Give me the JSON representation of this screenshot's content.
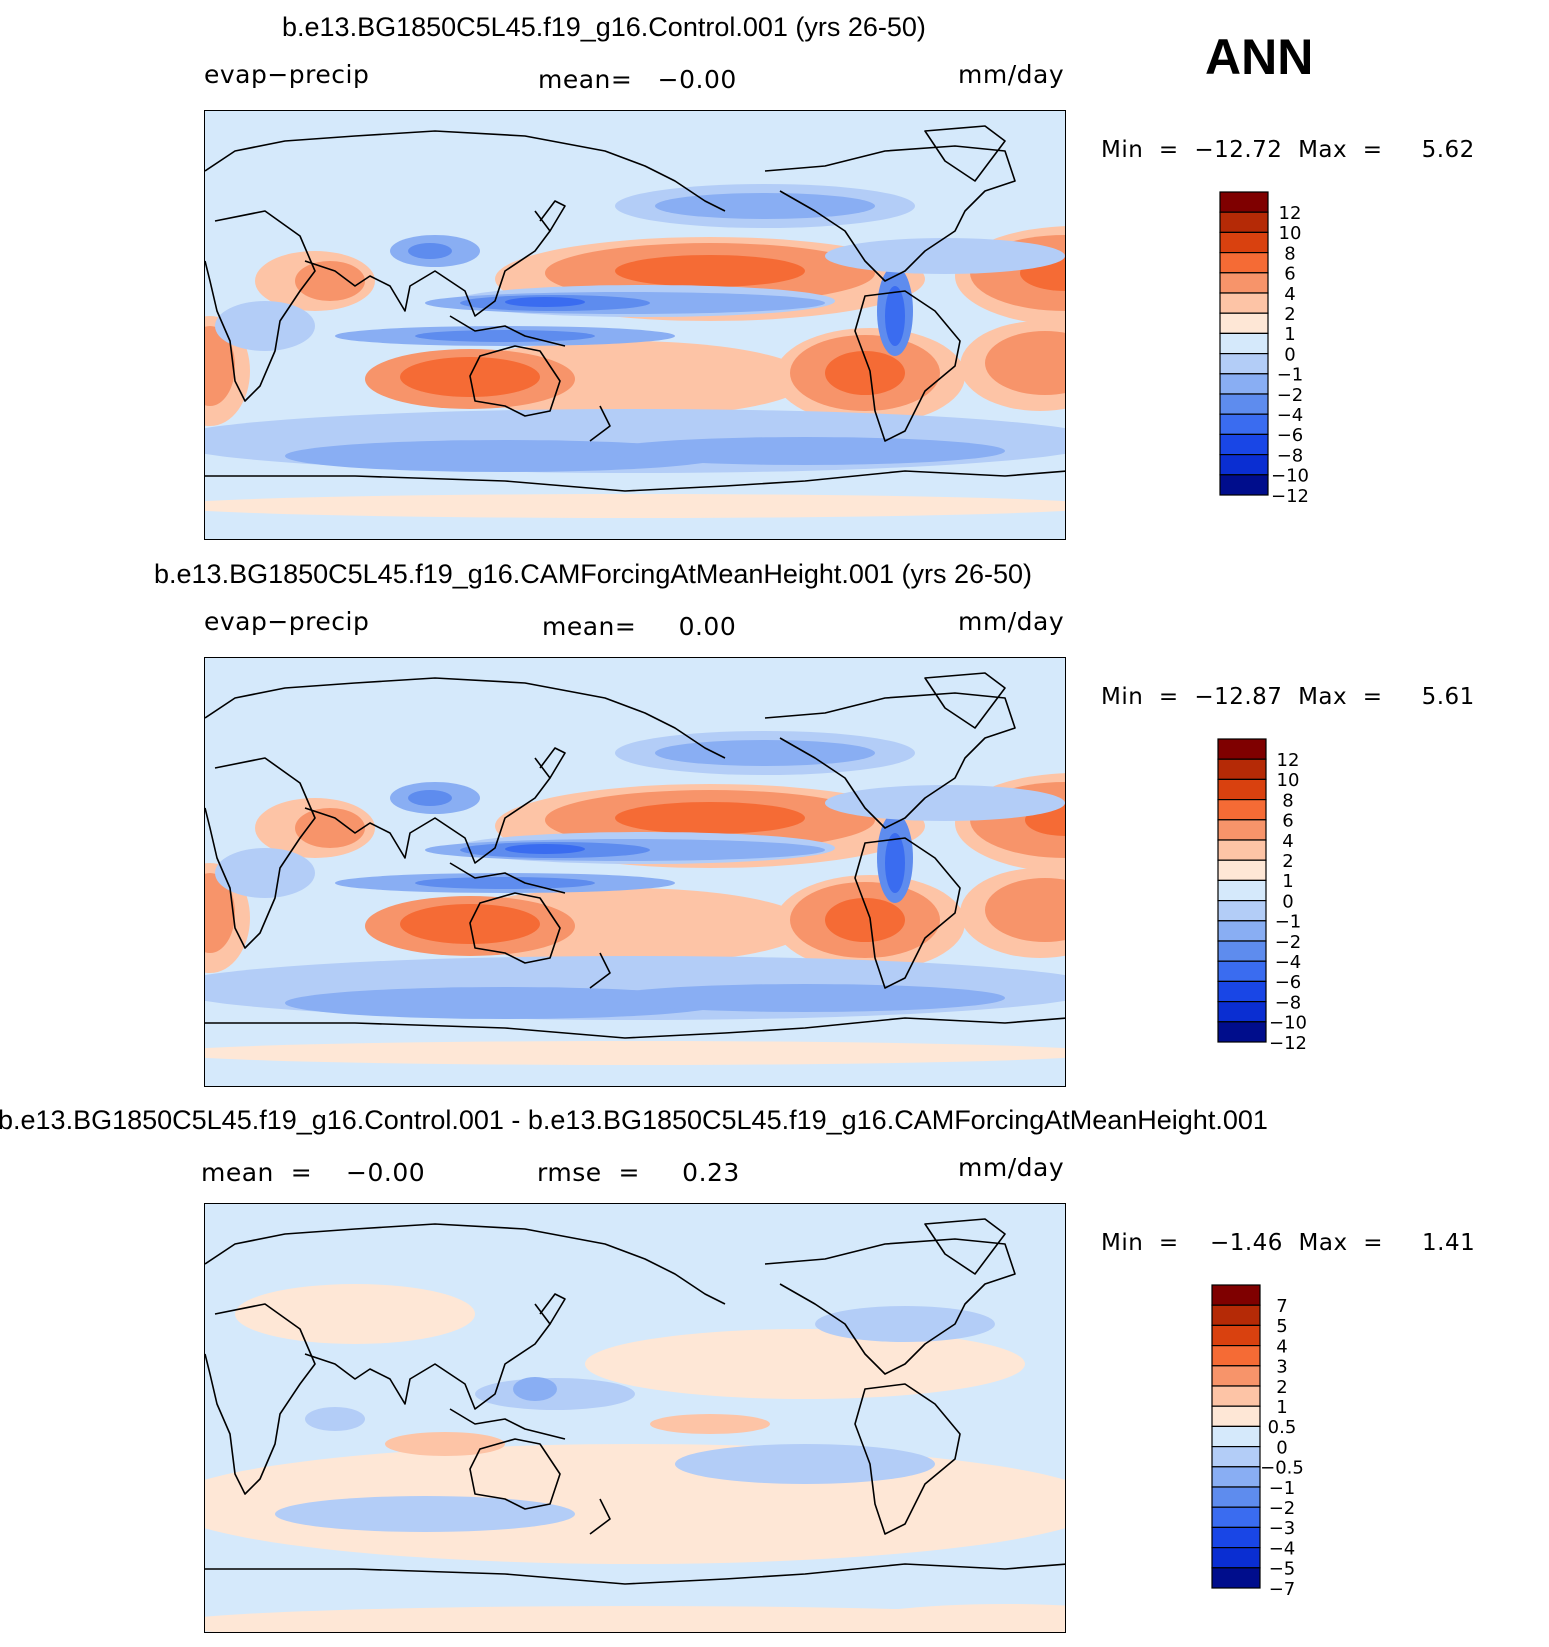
{
  "page": {
    "season": "ANN"
  },
  "panels": [
    {
      "title": "b.e13.BG1850C5L45.f19_g16.Control.001 (yrs 26-50)",
      "left_label": "evap−precip",
      "center_label": "mean=   −0.00",
      "units": "mm/day",
      "minmax": "Min  =  −12.72  Max  =     5.62",
      "field": "control"
    },
    {
      "title": "b.e13.BG1850C5L45.f19_g16.CAMForcingAtMeanHeight.001 (yrs 26-50)",
      "left_label": "evap−precip",
      "center_label": "mean=     0.00",
      "units": "mm/day",
      "minmax": "Min  =  −12.87  Max  =     5.61",
      "field": "experiment"
    },
    {
      "title": "b.e13.BG1850C5L45.f19_g16.Control.001 - b.e13.BG1850C5L45.f19_g16.CAMForcingAtMeanHeight.001",
      "left_label": "mean  =    −0.00",
      "center_label": "rmse  =     0.23",
      "units": "mm/day",
      "minmax": "Min  =    −1.46  Max  =     1.41",
      "field": "difference"
    }
  ],
  "chart_data": [
    {
      "type": "heatmap",
      "title": "b.e13.BG1850C5L45.f19_g16.Control.001 (yrs 26-50)",
      "variable": "evap−precip",
      "units": "mm/day",
      "mean": -0.0,
      "min": -12.72,
      "max": 5.62,
      "projection": "cylindrical equidistant, centered on 180°",
      "colorbar_levels": [
        "12",
        "10",
        "8",
        "6",
        "4",
        "2",
        "1",
        "0",
        "−1",
        "−2",
        "−4",
        "−6",
        "−8",
        "−10",
        "−12"
      ]
    },
    {
      "type": "heatmap",
      "title": "b.e13.BG1850C5L45.f19_g16.CAMForcingAtMeanHeight.001 (yrs 26-50)",
      "variable": "evap−precip",
      "units": "mm/day",
      "mean": 0.0,
      "min": -12.87,
      "max": 5.61,
      "projection": "cylindrical equidistant, centered on 180°",
      "colorbar_levels": [
        "12",
        "10",
        "8",
        "6",
        "4",
        "2",
        "1",
        "0",
        "−1",
        "−2",
        "−4",
        "−6",
        "−8",
        "−10",
        "−12"
      ]
    },
    {
      "type": "heatmap",
      "title": "b.e13.BG1850C5L45.f19_g16.Control.001 - b.e13.BG1850C5L45.f19_g16.CAMForcingAtMeanHeight.001",
      "units": "mm/day",
      "mean": -0.0,
      "rmse": 0.23,
      "min": -1.46,
      "max": 1.41,
      "projection": "cylindrical equidistant, centered on 180°",
      "colorbar_levels": [
        "7",
        "5",
        "4",
        "3",
        "2",
        "1",
        "0.5",
        "0",
        "−0.5",
        "−1",
        "−2",
        "−3",
        "−4",
        "−5",
        "−7"
      ]
    }
  ],
  "colors": {
    "scale": [
      "#7f0000",
      "#b52a06",
      "#d9410f",
      "#f56b35",
      "#f7946a",
      "#fdc4a6",
      "#fee7d6",
      "#d5e9fb",
      "#b3cdf7",
      "#89aef3",
      "#5e8cee",
      "#3a6cf0",
      "#1946e6",
      "#0a2ed2",
      "#000d8c"
    ],
    "zero_band_positive": "#fee7d6",
    "zero_band_negative": "#d5e9fb"
  }
}
